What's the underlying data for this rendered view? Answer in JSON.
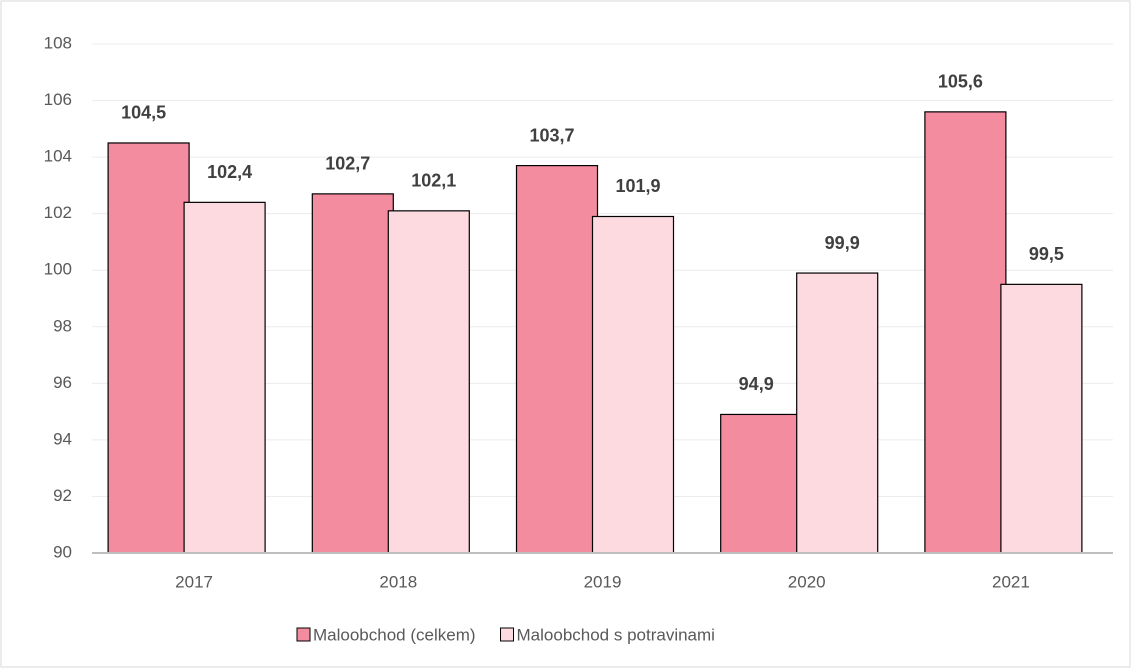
{
  "chart_data": {
    "type": "bar",
    "categories": [
      "2017",
      "2018",
      "2019",
      "2020",
      "2021"
    ],
    "series": [
      {
        "name": "Maloobchod (celkem)",
        "color": "#f48ca0",
        "values": [
          104.5,
          102.7,
          103.7,
          94.9,
          105.6
        ],
        "value_labels": [
          "104,5",
          "102,7",
          "103,7",
          "94,9",
          "105,6"
        ]
      },
      {
        "name": "Maloobchod s potravinami",
        "color": "#fdd9e0",
        "values": [
          102.4,
          102.1,
          101.9,
          99.9,
          99.5
        ],
        "value_labels": [
          "102,4",
          "102,1",
          "101,9",
          "99,9",
          "99,5"
        ]
      }
    ],
    "ylim": [
      90,
      108
    ],
    "yticks": [
      90,
      92,
      94,
      96,
      98,
      100,
      102,
      104,
      106,
      108
    ],
    "grid": true,
    "legend": "bottom"
  }
}
